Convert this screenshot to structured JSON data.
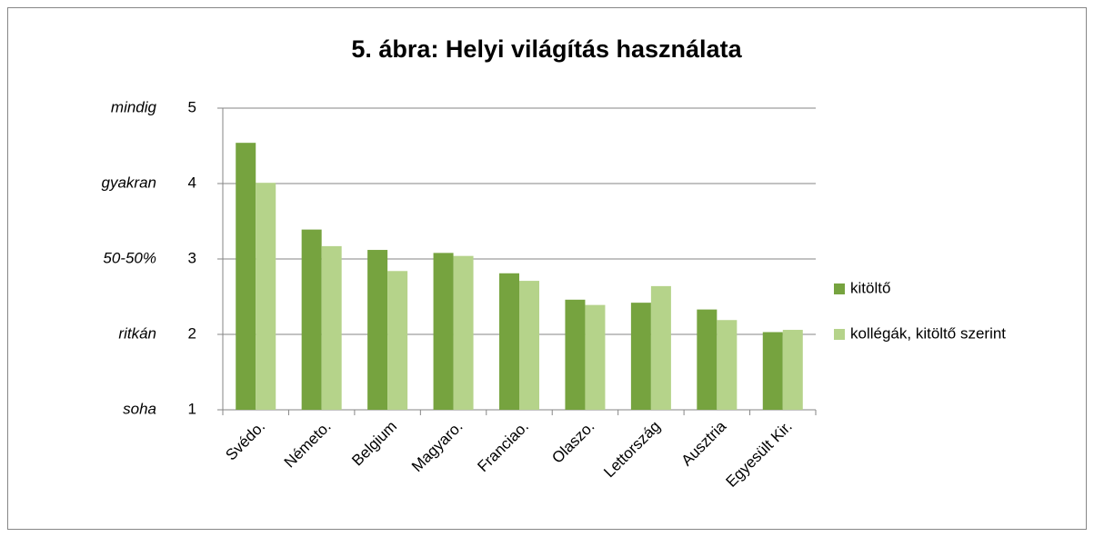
{
  "chart_data": {
    "type": "bar",
    "title": "5. ábra: Helyi világítás használata",
    "categories": [
      "Svédo.",
      "Németo.",
      "Belgium",
      "Magyaro.",
      "Franciao.",
      "Olaszo.",
      "Lettország",
      "Ausztria",
      "Egyesült Kir."
    ],
    "series": [
      {
        "name": "kitöltő",
        "color": "#76a33f",
        "values": [
          4.54,
          3.39,
          3.12,
          3.08,
          2.81,
          2.46,
          2.42,
          2.33,
          2.03
        ]
      },
      {
        "name": "kollégák, kitöltő szerint",
        "color": "#b5d38a",
        "values": [
          4.01,
          3.17,
          2.84,
          3.04,
          2.71,
          2.39,
          2.64,
          2.19,
          2.06
        ]
      }
    ],
    "ylim": [
      1,
      5
    ],
    "yticks": [
      1,
      2,
      3,
      4,
      5
    ],
    "y_level_labels": [
      "soha",
      "ritkán",
      "50-50%",
      "gyakran",
      "mindig"
    ],
    "grid": true,
    "legend": "right"
  }
}
